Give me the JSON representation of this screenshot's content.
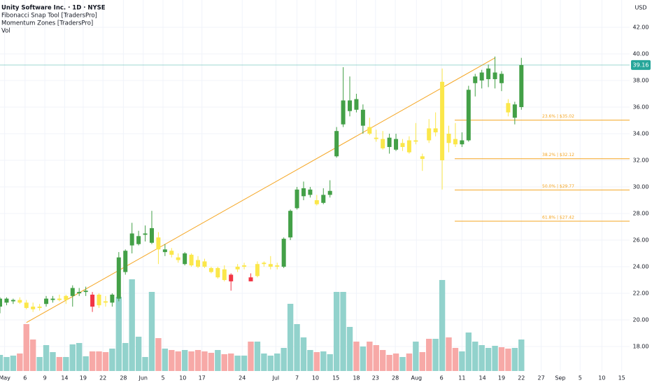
{
  "chart_data": {
    "type": "candlestick",
    "title": "Unity Software Inc. · 1D · NYSE",
    "indicators": [
      "Fibonacci Snap Tool [TradersPro]",
      "Momentum Zones [TradersPro]",
      "Vol"
    ],
    "currency": "USD",
    "last_price": 39.16,
    "last_price_color": "#26a69a",
    "xlim": [
      0,
      95.4
    ],
    "ylim": [
      16.16,
      44.05
    ],
    "volume_lim": [
      0,
      106
    ],
    "grid": true,
    "xticks": [
      {
        "value": 0.7,
        "label": "May"
      },
      {
        "value": 3.8,
        "label": "6"
      },
      {
        "value": 6.8,
        "label": "9"
      },
      {
        "value": 9.8,
        "label": "14"
      },
      {
        "value": 12.6,
        "label": "19"
      },
      {
        "value": 15.6,
        "label": "22"
      },
      {
        "value": 18.7,
        "label": "28"
      },
      {
        "value": 21.7,
        "label": "Jun"
      },
      {
        "value": 24.7,
        "label": "5"
      },
      {
        "value": 27.7,
        "label": "10"
      },
      {
        "value": 30.6,
        "label": "17"
      },
      {
        "value": 36.7,
        "label": "24"
      },
      {
        "value": 41.8,
        "label": "Jul"
      },
      {
        "value": 45,
        "label": "7"
      },
      {
        "value": 47.8,
        "label": "10"
      },
      {
        "value": 50.9,
        "label": "15"
      },
      {
        "value": 54,
        "label": "18"
      },
      {
        "value": 56.9,
        "label": "23"
      },
      {
        "value": 59.9,
        "label": "28"
      },
      {
        "value": 63.1,
        "label": "Aug"
      },
      {
        "value": 66.9,
        "label": "6"
      },
      {
        "value": 70,
        "label": "11"
      },
      {
        "value": 73.1,
        "label": "14"
      },
      {
        "value": 76,
        "label": "19"
      },
      {
        "value": 79,
        "label": "22"
      },
      {
        "value": 82,
        "label": "27"
      },
      {
        "value": 84.9,
        "label": "Sep"
      },
      {
        "value": 87.9,
        "label": "5"
      },
      {
        "value": 91.2,
        "label": "10"
      },
      {
        "value": 94.2,
        "label": "15"
      }
    ],
    "yticks": [
      {
        "value": 18,
        "label": "18.00"
      },
      {
        "value": 20,
        "label": "20.00"
      },
      {
        "value": 22,
        "label": "22.00"
      },
      {
        "value": 24,
        "label": "24.00"
      },
      {
        "value": 26,
        "label": "26.00"
      },
      {
        "value": 28,
        "label": "28.00"
      },
      {
        "value": 30,
        "label": "30.00"
      },
      {
        "value": 32,
        "label": "32.00"
      },
      {
        "value": 34,
        "label": "34.00"
      },
      {
        "value": 36,
        "label": "36.00"
      },
      {
        "value": 38,
        "label": "38.00"
      },
      {
        "value": 40,
        "label": "40.00"
      },
      {
        "value": 42,
        "label": "42.00"
      }
    ],
    "open": [
      21.0,
      21.3,
      21.4,
      21.5,
      21.3,
      21.0,
      20.9,
      21.2,
      21.5,
      21.6,
      21.5,
      21.8,
      22.0,
      22.1,
      21.9,
      21.9,
      21.4,
      21.3,
      21.6,
      23.6,
      25.6,
      25.7,
      26.4,
      25.8,
      26.2,
      25.1,
      25.2,
      24.7,
      24.2,
      24.9,
      24.5,
      24.4,
      23.9,
      23.2,
      23.8,
      23.4,
      23.8,
      24.0,
      23.2,
      23.3,
      24.2,
      24.0,
      24.0,
      24.0,
      26.2,
      28.4,
      29.3,
      29.4,
      29.0,
      28.8,
      29.4,
      32.3,
      34.7,
      35.7,
      36.6,
      34.6,
      34.5,
      33.7,
      33.6,
      33.7,
      33.6,
      33.0,
      33.5,
      33.4,
      32.3,
      34.4,
      34.1,
      32.0,
      34.0,
      33.6,
      33.2,
      33.5,
      37.8,
      38.0,
      38.1,
      38.1,
      38.5,
      36.3,
      35.2,
      36.0
    ],
    "high": [
      21.7,
      21.7,
      21.6,
      21.7,
      21.5,
      21.3,
      21.2,
      21.8,
      21.8,
      21.9,
      21.9,
      22.6,
      22.4,
      22.5,
      22.1,
      22.0,
      21.8,
      22.0,
      25.1,
      25.3,
      27.3,
      26.7,
      27.1,
      28.2,
      26.6,
      25.7,
      25.4,
      25.0,
      25.1,
      25.0,
      24.8,
      24.6,
      24.0,
      24.0,
      24.1,
      23.5,
      24.2,
      24.3,
      23.5,
      24.4,
      24.4,
      24.8,
      24.3,
      26.2,
      28.3,
      30.0,
      30.4,
      30.0,
      29.4,
      29.9,
      30.5,
      34.5,
      39.0,
      38.3,
      37.0,
      36.2,
      35.2,
      34.3,
      34.2,
      34.0,
      34.0,
      33.6,
      33.8,
      34.8,
      32.5,
      35.1,
      35.6,
      38.9,
      34.6,
      34.8,
      34.1,
      37.6,
      38.5,
      38.8,
      39.2,
      39.8,
      38.7,
      36.6,
      36.4,
      39.7
    ],
    "low": [
      20.5,
      21.1,
      21.2,
      21.2,
      20.8,
      20.6,
      20.7,
      21.0,
      21.3,
      21.4,
      21.2,
      21.0,
      21.8,
      21.8,
      20.6,
      20.9,
      21.0,
      21.0,
      21.4,
      23.4,
      25.0,
      25.6,
      25.9,
      25.7,
      24.2,
      24.8,
      24.7,
      24.3,
      24.1,
      24.0,
      23.9,
      23.9,
      23.5,
      23.1,
      22.9,
      22.2,
      23.6,
      23.8,
      22.9,
      23.2,
      24.0,
      23.8,
      23.8,
      23.9,
      26.0,
      28.3,
      29.0,
      29.2,
      28.6,
      28.7,
      29.2,
      32.2,
      34.5,
      35.3,
      35.6,
      34.0,
      33.9,
      33.4,
      32.8,
      32.5,
      32.7,
      32.7,
      32.5,
      33.2,
      31.2,
      33.3,
      33.8,
      29.8,
      32.6,
      33.0,
      33.0,
      33.4,
      36.8,
      37.4,
      37.5,
      37.4,
      37.2,
      35.3,
      34.7,
      35.8
    ],
    "close": [
      21.6,
      21.6,
      21.5,
      21.3,
      20.9,
      20.8,
      21.0,
      21.6,
      21.6,
      21.5,
      21.8,
      22.4,
      22.1,
      22.2,
      21.0,
      21.1,
      21.3,
      21.9,
      24.7,
      25.2,
      26.5,
      26.3,
      26.5,
      26.9,
      25.3,
      25.3,
      24.9,
      24.5,
      25.0,
      24.1,
      24.0,
      24.0,
      23.6,
      23.9,
      23.0,
      22.9,
      24.0,
      24.1,
      22.9,
      24.2,
      24.3,
      24.2,
      24.1,
      26.1,
      28.2,
      29.8,
      29.9,
      29.8,
      28.7,
      29.4,
      29.7,
      34.2,
      36.5,
      36.5,
      35.8,
      35.8,
      34.0,
      33.6,
      32.9,
      33.0,
      32.8,
      33.3,
      32.6,
      33.5,
      32.1,
      33.5,
      34.4,
      37.9,
      33.3,
      33.2,
      33.5,
      37.3,
      38.3,
      38.6,
      38.9,
      38.6,
      37.8,
      35.6,
      36.2,
      39.16
    ],
    "candle_colors": [
      "#43a047",
      "#43a047",
      "#43a047",
      "#fbe74a",
      "#fbe74a",
      "#fbe74a",
      "#fbe74a",
      "#43a047",
      "#43a047",
      "#fbe74a",
      "#fbe74a",
      "#43a047",
      "#43a047",
      "#43a047",
      "#f23645",
      "#fbe74a",
      "#fbe74a",
      "#43a047",
      "#43a047",
      "#43a047",
      "#43a047",
      "#43a047",
      "#43a047",
      "#43a047",
      "#fbe74a",
      "#43a047",
      "#fbe74a",
      "#fbe74a",
      "#43a047",
      "#fbe74a",
      "#fbe74a",
      "#fbe74a",
      "#fbe74a",
      "#fbe74a",
      "#fbe74a",
      "#f23645",
      "#fbe74a",
      "#fbe74a",
      "#f23645",
      "#fbe74a",
      "#fbe74a",
      "#fbe74a",
      "#fbe74a",
      "#43a047",
      "#43a047",
      "#43a047",
      "#43a047",
      "#43a047",
      "#fbe74a",
      "#43a047",
      "#43a047",
      "#43a047",
      "#43a047",
      "#43a047",
      "#43a047",
      "#43a047",
      "#fbe74a",
      "#fbe74a",
      "#fbe74a",
      "#43a047",
      "#43a047",
      "#fbe74a",
      "#fbe74a",
      "#fbe74a",
      "#fbe74a",
      "#fbe74a",
      "#fbe74a",
      "#fbe74a",
      "#fbe74a",
      "#fbe74a",
      "#43a047",
      "#43a047",
      "#43a047",
      "#43a047",
      "#43a047",
      "#43a047",
      "#43a047",
      "#fbe74a",
      "#43a047",
      "#43a047"
    ],
    "volume": [
      4.6,
      4,
      4.4,
      5,
      13.4,
      9,
      4,
      7.4,
      5.4,
      4,
      4,
      7.6,
      8,
      4.2,
      5.6,
      5.6,
      5.4,
      6.4,
      21.2,
      8,
      26.2,
      9.8,
      4,
      22.6,
      9.4,
      6.4,
      6,
      5.6,
      6,
      5.6,
      6,
      5.6,
      5.2,
      6,
      4.8,
      5,
      4.4,
      4.4,
      8.4,
      8.4,
      5,
      4.4,
      5,
      6.6,
      19.2,
      13.4,
      9.6,
      6,
      5.4,
      5.6,
      4.8,
      22.6,
      22.6,
      12.6,
      8.4,
      7,
      8.4,
      7.4,
      6,
      4.6,
      5,
      4,
      5,
      8.4,
      5.4,
      9.2,
      9.2,
      26,
      9.6,
      6.6,
      5.6,
      11,
      8.4,
      7.4,
      6.6,
      7.2,
      6.8,
      6.4,
      6.6,
      9
    ],
    "up_volume_color": "#92d2cc",
    "down_volume_color": "#f7a9a7",
    "trendline": {
      "x": [
        4,
        75
      ],
      "y": [
        19.8,
        39.7
      ],
      "color": "#f5a623"
    },
    "fib_levels": [
      {
        "label": "23.6% | $35.02",
        "value": 35.02
      },
      {
        "label": "38.2% | $32.12",
        "value": 32.12
      },
      {
        "label": "50.0% | $29.77",
        "value": 29.77
      },
      {
        "label": "61.8% | $27.42",
        "value": 27.42
      }
    ],
    "fib_start": 68.9,
    "fib_color": "#f5a623"
  }
}
